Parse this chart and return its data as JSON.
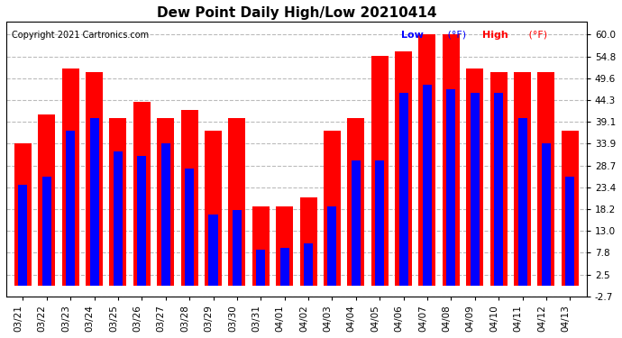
{
  "title": "Dew Point Daily High/Low 20210414",
  "copyright": "Copyright 2021 Cartronics.com",
  "categories": [
    "03/21",
    "03/22",
    "03/23",
    "03/24",
    "03/25",
    "03/26",
    "03/27",
    "03/28",
    "03/29",
    "03/30",
    "03/31",
    "04/01",
    "04/02",
    "04/03",
    "04/04",
    "04/05",
    "04/06",
    "04/07",
    "04/08",
    "04/09",
    "04/10",
    "04/11",
    "04/12",
    "04/13"
  ],
  "high_values": [
    34.0,
    41.0,
    52.0,
    51.0,
    40.0,
    44.0,
    40.0,
    42.0,
    37.0,
    40.0,
    19.0,
    19.0,
    21.0,
    37.0,
    40.0,
    55.0,
    56.0,
    60.0,
    60.0,
    52.0,
    51.0,
    51.0,
    51.0,
    37.0
  ],
  "low_values": [
    24.0,
    26.0,
    37.0,
    40.0,
    32.0,
    31.0,
    34.0,
    28.0,
    17.0,
    18.0,
    8.5,
    9.0,
    10.0,
    19.0,
    30.0,
    30.0,
    46.0,
    48.0,
    47.0,
    46.0,
    46.0,
    40.0,
    34.0,
    26.0
  ],
  "high_color": "#ff0000",
  "low_color": "#0000ff",
  "background_color": "#ffffff",
  "ylim_min": -2.7,
  "ylim_max": 63.0,
  "yticks": [
    -2.7,
    2.5,
    7.8,
    13.0,
    18.2,
    23.4,
    28.7,
    33.9,
    39.1,
    44.3,
    49.6,
    54.8,
    60.0
  ],
  "grid_color": "#bbbbbb",
  "title_fontsize": 11,
  "tick_fontsize": 7.5,
  "copyright_fontsize": 7
}
